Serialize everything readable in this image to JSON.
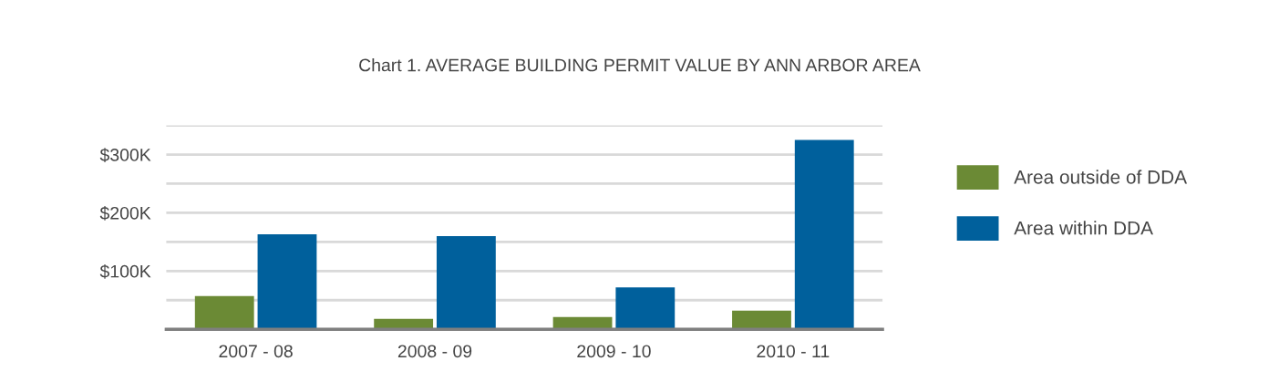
{
  "chart_data": {
    "type": "bar",
    "title": "Chart 1. AVERAGE BUILDING PERMIT VALUE BY ANN ARBOR AREA",
    "categories": [
      "2007 - 08",
      "2008 - 09",
      "2009 - 10",
      "2010 - 11"
    ],
    "series": [
      {
        "name": "Area outside of DDA",
        "color": "#6b8a35",
        "values": [
          57000,
          18000,
          21000,
          32000
        ]
      },
      {
        "name": "Area within DDA",
        "color": "#00609c",
        "values": [
          163000,
          160000,
          72000,
          325000
        ]
      }
    ],
    "ylim": [
      0,
      350000
    ],
    "yticks": [
      {
        "value": 0,
        "label": null
      },
      {
        "value": 50000,
        "label": null
      },
      {
        "value": 100000,
        "label": "$100K"
      },
      {
        "value": 150000,
        "label": null
      },
      {
        "value": 200000,
        "label": "$200K"
      },
      {
        "value": 250000,
        "label": null
      },
      {
        "value": 300000,
        "label": "$300K"
      },
      {
        "value": 350000,
        "label": null
      }
    ],
    "grid": "y",
    "legend": "right"
  }
}
